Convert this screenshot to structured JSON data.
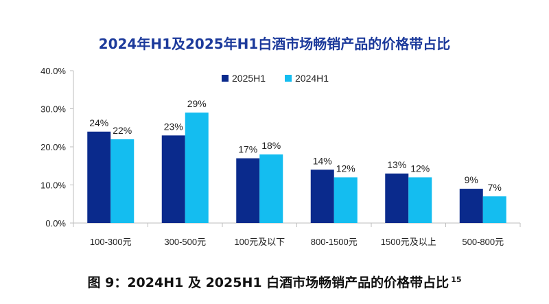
{
  "caption": {
    "text": "图 9：2024H1 及 2025H1 白酒市场畅销产品的价格带占比",
    "note": "15"
  },
  "chart_data": {
    "type": "bar",
    "title": "2024年H1及2025年H1白酒市场畅销产品的价格带占比",
    "categories": [
      "100-300元",
      "300-500元",
      "100元及以下",
      "800-1500元",
      "1500元及以上",
      "500-800元"
    ],
    "series": [
      {
        "name": "2025H1",
        "color": "#0a2a8c",
        "values": [
          24,
          23,
          17,
          14,
          13,
          9
        ],
        "labels": [
          "24%",
          "23%",
          "17%",
          "14%",
          "13%",
          "9%"
        ]
      },
      {
        "name": "2024H1",
        "color": "#14bdf0",
        "values": [
          22,
          29,
          18,
          12,
          12,
          7
        ],
        "labels": [
          "22%",
          "29%",
          "18%",
          "12%",
          "12%",
          "7%"
        ]
      }
    ],
    "yticks": [
      "0.0%",
      "10.0%",
      "20.0%",
      "30.0%",
      "40.0%"
    ],
    "ylim": [
      0,
      40
    ],
    "xlabel": "",
    "ylabel": "",
    "legend_position": "top-center",
    "grid": false,
    "title_color": "#1c3a9b"
  }
}
